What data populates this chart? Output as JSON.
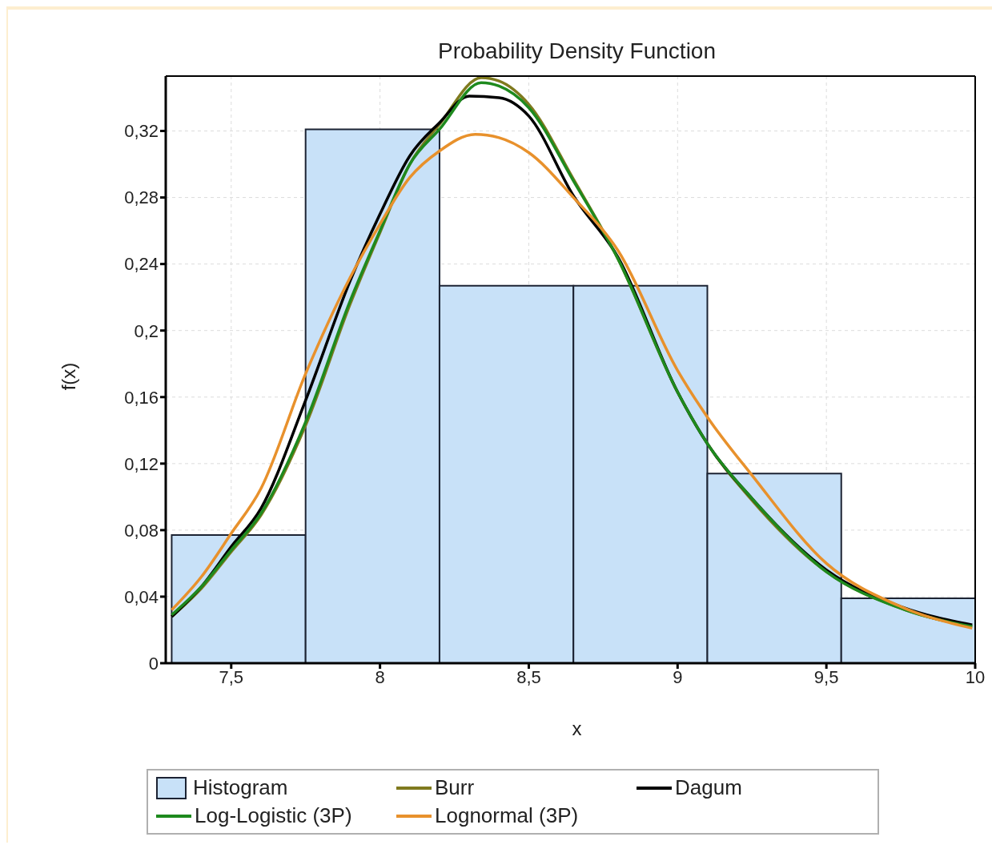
{
  "chart_data": {
    "type": "histogram",
    "title": "Probability Density Function",
    "xlabel": "x",
    "ylabel": "f(x)",
    "bins": [
      7.3,
      7.75,
      8.2,
      8.65,
      9.1,
      9.55,
      10.0
    ],
    "series": [
      {
        "name": "Histogram",
        "color": "#c8e1f8",
        "values": [
          0.077,
          0.321,
          0.227,
          0.227,
          0.114,
          0.039
        ]
      },
      {
        "name": "Burr",
        "type": "line",
        "color": "#7f7a1e",
        "x": [
          7.3,
          7.4,
          7.5,
          7.6,
          7.75,
          7.9,
          8.0,
          8.1,
          8.2,
          8.34,
          8.4,
          8.5,
          8.65,
          8.8,
          9.0,
          9.1,
          9.25,
          9.5,
          9.75,
          9.99
        ],
        "values": [
          0.028,
          0.045,
          0.067,
          0.089,
          0.143,
          0.216,
          0.259,
          0.3,
          0.324,
          0.352,
          0.35,
          0.336,
          0.291,
          0.243,
          0.163,
          0.132,
          0.098,
          0.055,
          0.033,
          0.022
        ]
      },
      {
        "name": "Dagum",
        "type": "line",
        "color": "#000000",
        "x": [
          7.3,
          7.4,
          7.5,
          7.6,
          7.75,
          7.9,
          8.0,
          8.1,
          8.2,
          8.3,
          8.4,
          8.5,
          8.65,
          8.8,
          9.0,
          9.1,
          9.25,
          9.5,
          9.75,
          9.99
        ],
        "values": [
          0.028,
          0.046,
          0.07,
          0.093,
          0.158,
          0.23,
          0.27,
          0.305,
          0.325,
          0.341,
          0.34,
          0.329,
          0.281,
          0.244,
          0.163,
          0.132,
          0.099,
          0.056,
          0.034,
          0.023
        ]
      },
      {
        "name": "Log-Logistic (3P)",
        "type": "line",
        "color": "#1e8a1e",
        "x": [
          7.3,
          7.4,
          7.5,
          7.6,
          7.75,
          7.9,
          8.0,
          8.1,
          8.2,
          8.34,
          8.4,
          8.5,
          8.65,
          8.8,
          9.0,
          9.1,
          9.25,
          9.5,
          9.75,
          9.99
        ],
        "values": [
          0.029,
          0.046,
          0.068,
          0.09,
          0.145,
          0.218,
          0.26,
          0.3,
          0.321,
          0.349,
          0.347,
          0.334,
          0.29,
          0.243,
          0.163,
          0.132,
          0.099,
          0.055,
          0.033,
          0.022
        ]
      },
      {
        "name": "Lognormal (3P)",
        "type": "line",
        "color": "#e8912c",
        "x": [
          7.3,
          7.4,
          7.5,
          7.6,
          7.75,
          7.9,
          8.0,
          8.1,
          8.2,
          8.32,
          8.4,
          8.5,
          8.65,
          8.8,
          9.0,
          9.1,
          9.25,
          9.5,
          9.75,
          9.99
        ],
        "values": [
          0.032,
          0.052,
          0.078,
          0.105,
          0.174,
          0.232,
          0.264,
          0.292,
          0.308,
          0.318,
          0.316,
          0.307,
          0.28,
          0.248,
          0.176,
          0.148,
          0.113,
          0.06,
          0.034,
          0.021
        ]
      }
    ],
    "xlim": [
      7.28,
      10.0
    ],
    "ylim": [
      0,
      0.353
    ],
    "xticks": [
      {
        "value": 7.5,
        "label": "7,5"
      },
      8,
      {
        "value": 8.5,
        "label": "8,5"
      },
      9,
      {
        "value": 9.5,
        "label": "9,5"
      },
      10
    ],
    "yticks": [
      0,
      {
        "value": 0.04,
        "label": "0,04"
      },
      {
        "value": 0.08,
        "label": "0,08"
      },
      {
        "value": 0.12,
        "label": "0,12"
      },
      {
        "value": 0.16,
        "label": "0,16"
      },
      {
        "value": 0.2,
        "label": "0,2"
      },
      {
        "value": 0.24,
        "label": "0,24"
      },
      {
        "value": 0.28,
        "label": "0,28"
      },
      {
        "value": 0.32,
        "label": "0,32"
      }
    ],
    "grid": true,
    "legend": "bottom",
    "line_style": "solid",
    "marker": "none"
  }
}
